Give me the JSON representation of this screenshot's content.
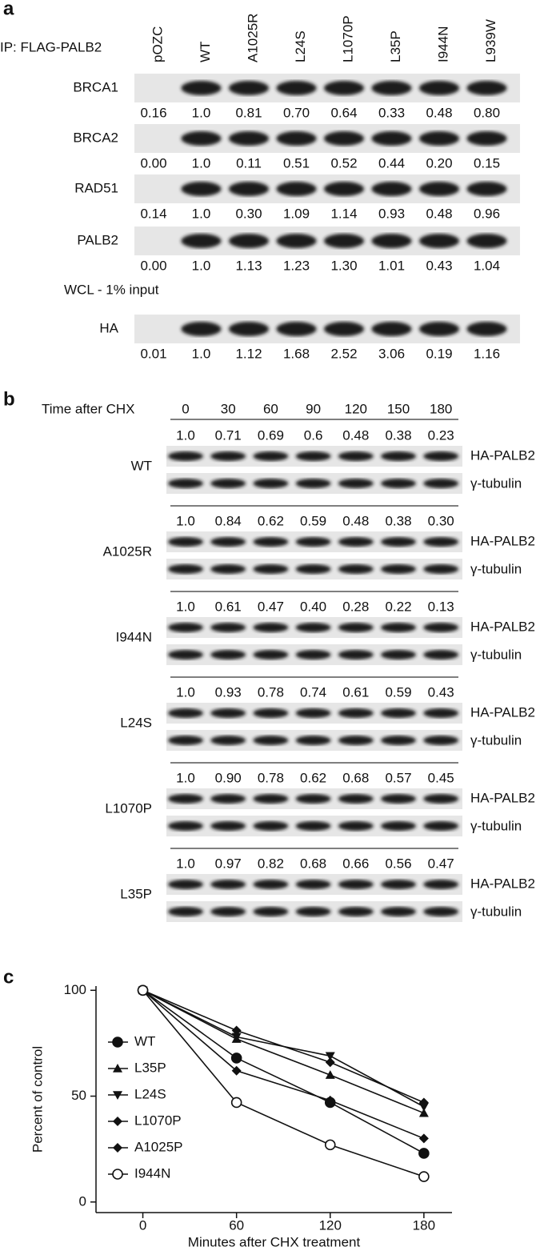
{
  "panel_a": {
    "label": "a",
    "ip_label": "IP: FLAG-PALB2",
    "lanes": [
      "pOZC",
      "WT",
      "A1025R",
      "L24S",
      "L1070P",
      "L35P",
      "I944N",
      "L939W"
    ],
    "rows": [
      {
        "name": "BRCA1",
        "values": [
          "0.16",
          "1.0",
          "0.81",
          "0.70",
          "0.64",
          "0.33",
          "0.48",
          "0.80"
        ]
      },
      {
        "name": "BRCA2",
        "values": [
          "0.00",
          "1.0",
          "0.11",
          "0.51",
          "0.52",
          "0.44",
          "0.20",
          "0.15"
        ]
      },
      {
        "name": "RAD51",
        "values": [
          "0.14",
          "1.0",
          "0.30",
          "1.09",
          "1.14",
          "0.93",
          "0.48",
          "0.96"
        ]
      },
      {
        "name": "PALB2",
        "values": [
          "0.00",
          "1.0",
          "1.13",
          "1.23",
          "1.30",
          "1.01",
          "0.43",
          "1.04"
        ]
      },
      {
        "name": "HA",
        "values": [
          "0.01",
          "1.0",
          "1.12",
          "1.68",
          "2.52",
          "3.06",
          "0.19",
          "1.16"
        ]
      }
    ],
    "wcl_label": "WCL - 1% input"
  },
  "panel_b": {
    "label": "b",
    "time_label": "Time after CHX",
    "times": [
      "0",
      "30",
      "60",
      "90",
      "120",
      "150",
      "180"
    ],
    "groups": [
      {
        "name": "WT",
        "values": [
          "1.0",
          "0.71",
          "0.69",
          "0.6",
          "0.48",
          "0.38",
          "0.23"
        ],
        "bands": [
          "HA-PALB2",
          "γ-tubulin"
        ]
      },
      {
        "name": "A1025R",
        "values": [
          "1.0",
          "0.84",
          "0.62",
          "0.59",
          "0.48",
          "0.38",
          "0.30"
        ],
        "bands": [
          "HA-PALB2",
          "γ-tubulin"
        ]
      },
      {
        "name": "I944N",
        "values": [
          "1.0",
          "0.61",
          "0.47",
          "0.40",
          "0.28",
          "0.22",
          "0.13"
        ],
        "bands": [
          "HA-PALB2",
          "γ-tubulin"
        ]
      },
      {
        "name": "L24S",
        "values": [
          "1.0",
          "0.93",
          "0.78",
          "0.74",
          "0.61",
          "0.59",
          "0.43"
        ],
        "bands": [
          "HA-PALB2",
          "γ-tubulin"
        ]
      },
      {
        "name": "L1070P",
        "values": [
          "1.0",
          "0.90",
          "0.78",
          "0.62",
          "0.68",
          "0.57",
          "0.45"
        ],
        "bands": [
          "HA-PALB2",
          "γ-tubulin"
        ]
      },
      {
        "name": "L35P",
        "values": [
          "1.0",
          "0.97",
          "0.82",
          "0.68",
          "0.66",
          "0.56",
          "0.47"
        ],
        "bands": [
          "HA-PALB2",
          "γ-tubulin"
        ]
      }
    ]
  },
  "chart_data": {
    "type": "line",
    "panel_label": "c",
    "xlabel": "Minutes after CHX treatment",
    "ylabel": "Percent of control",
    "x": [
      0,
      60,
      120,
      180
    ],
    "xlim": [
      -30,
      198
    ],
    "ylim": [
      -5,
      102
    ],
    "xticks": [
      0,
      60,
      120,
      180
    ],
    "yticks": [
      0,
      50,
      100
    ],
    "legend": "center-left",
    "series": [
      {
        "name": "WT",
        "color": "#111111",
        "marker": "circle",
        "values": [
          100,
          68,
          47,
          23
        ]
      },
      {
        "name": "L35P",
        "color": "#111111",
        "marker": "triangle-up",
        "values": [
          100,
          77,
          60,
          42
        ]
      },
      {
        "name": "L24S",
        "color": "#111111",
        "marker": "triangle-down",
        "values": [
          100,
          78,
          69,
          45
        ]
      },
      {
        "name": "L1070P",
        "color": "#111111",
        "marker": "diamond",
        "values": [
          100,
          62,
          48,
          30
        ]
      },
      {
        "name": "A1025P",
        "color": "#111111",
        "marker": "diamond",
        "values": [
          100,
          81,
          66,
          47
        ]
      },
      {
        "name": "I944N",
        "color": "#111111",
        "marker": "circle-open",
        "values": [
          100,
          47,
          27,
          12
        ]
      }
    ]
  }
}
